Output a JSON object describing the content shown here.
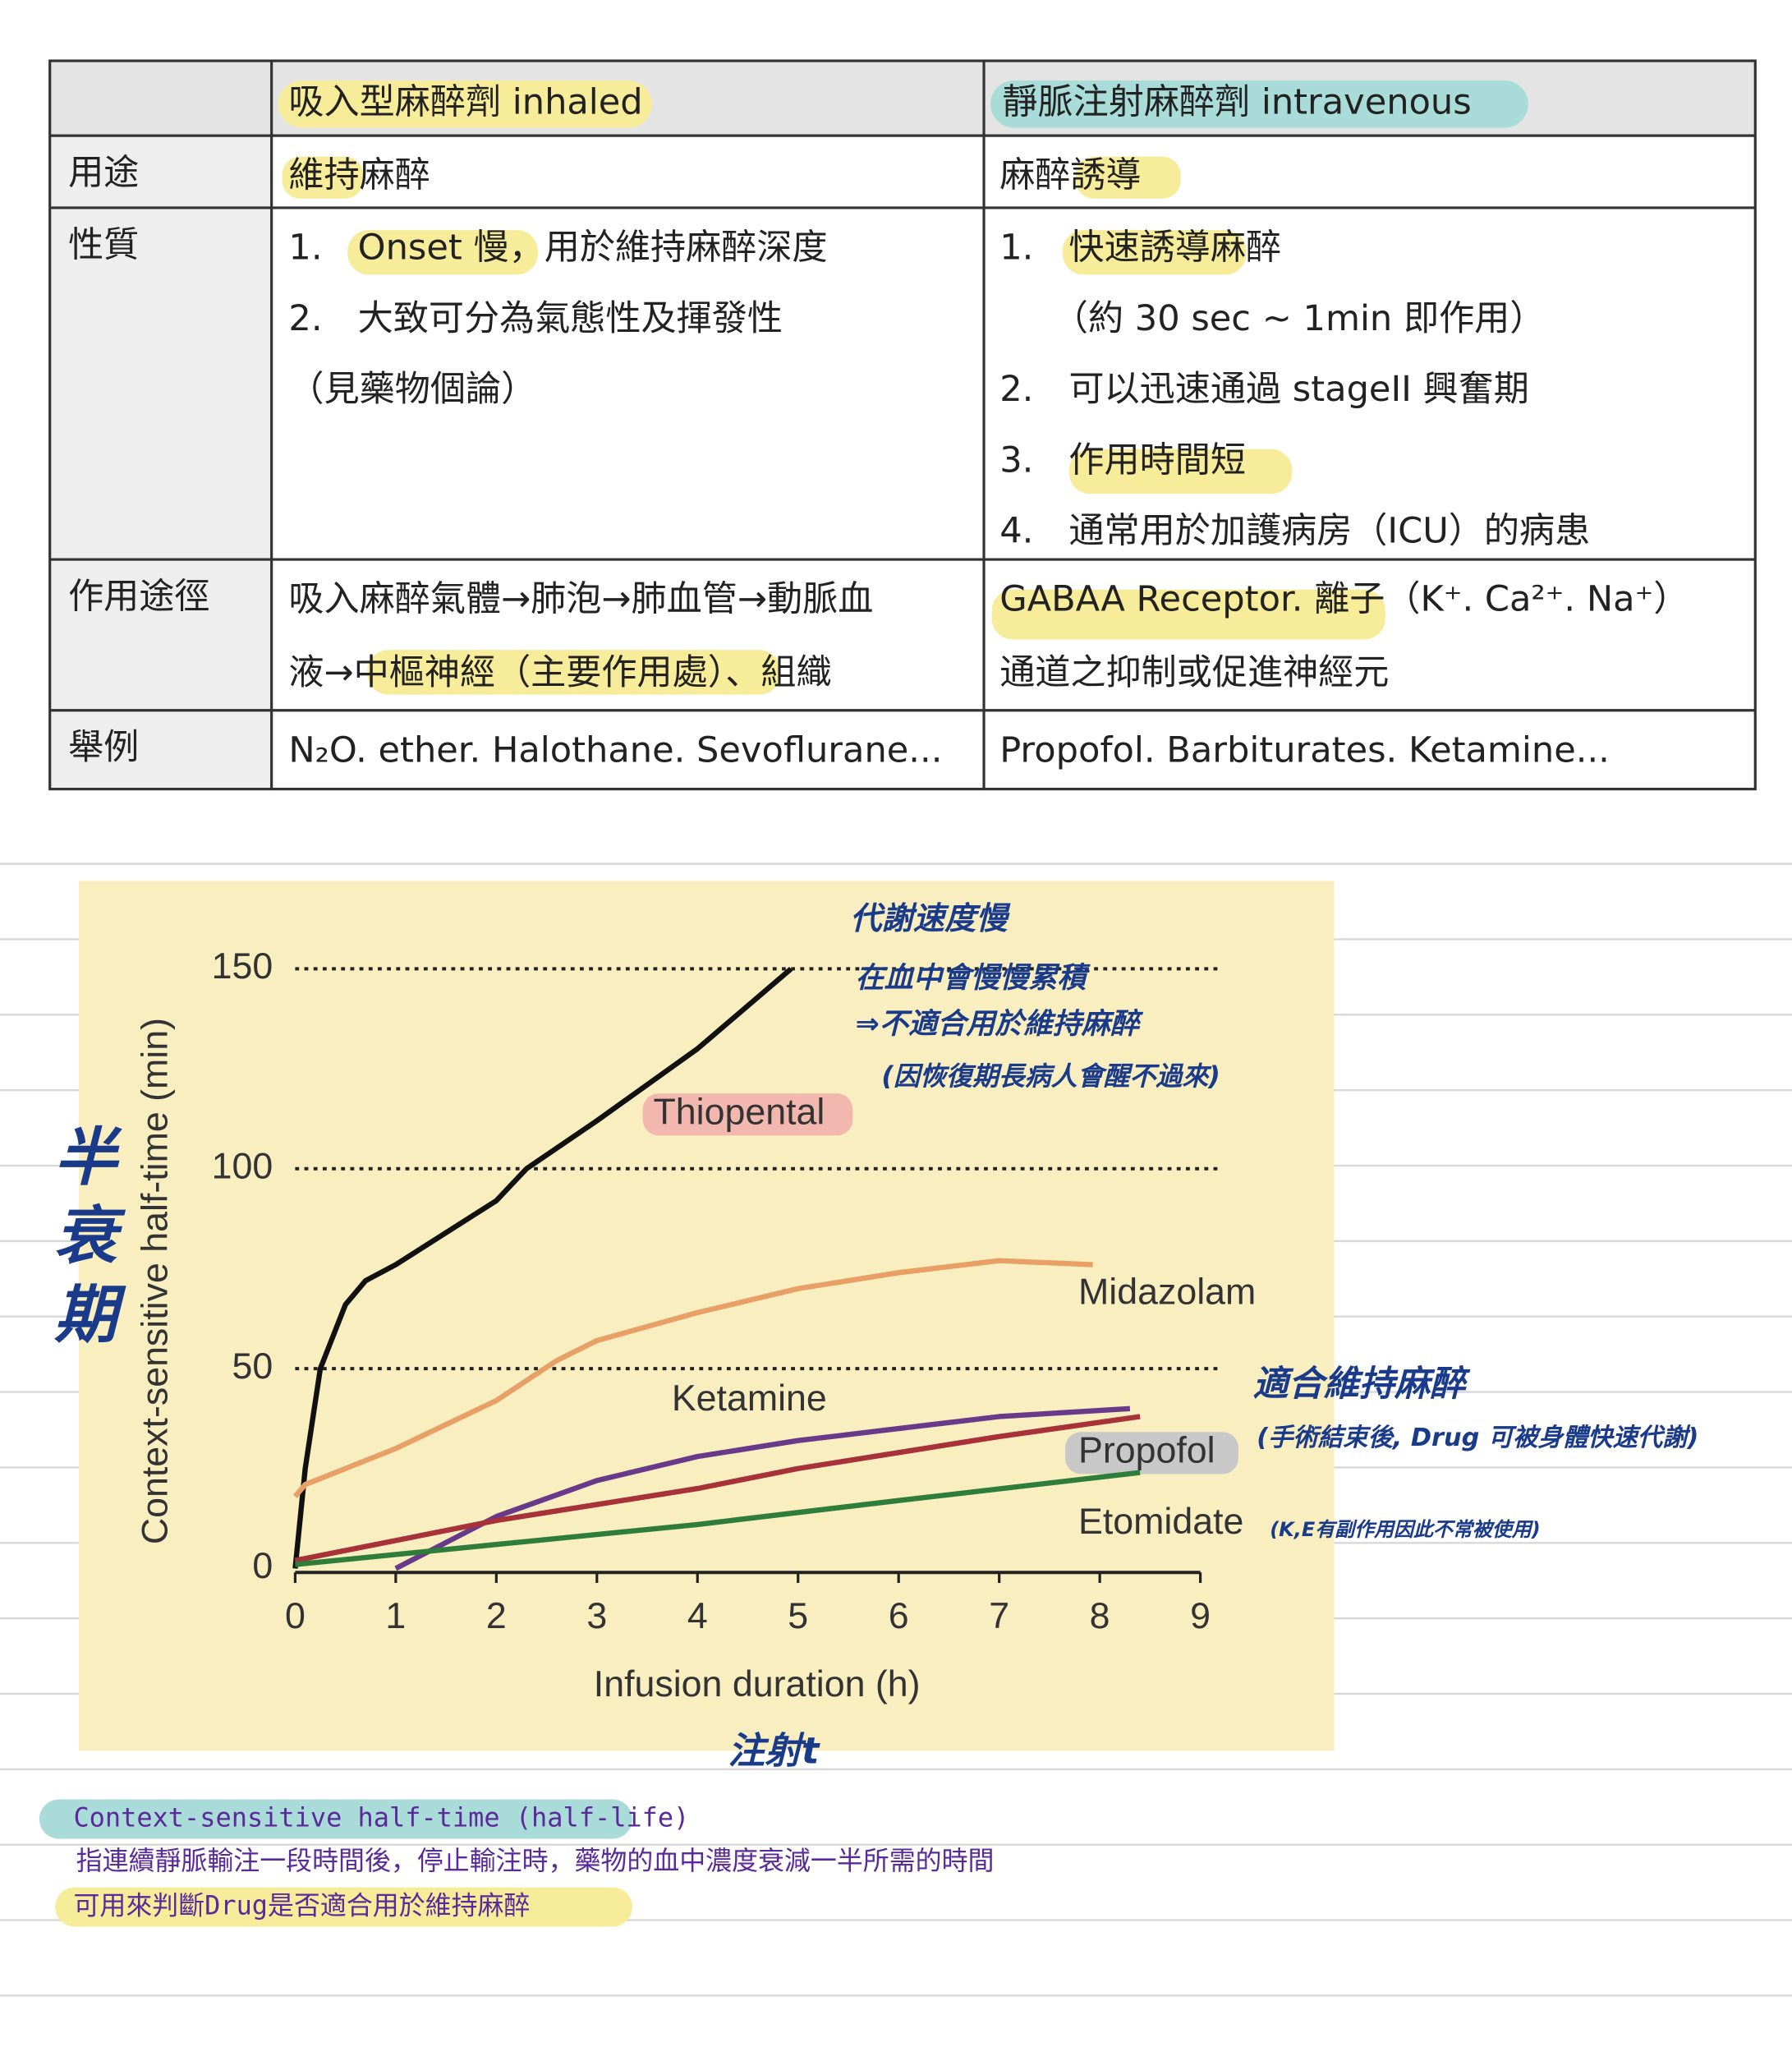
{
  "table": {
    "header": [
      "吸入型麻醉劑 inhaled",
      "靜脈注射麻醉劑 intravenous"
    ],
    "rows": [
      [
        "用途",
        [
          "維持麻醉"
        ],
        [
          "麻醉誘導"
        ]
      ],
      [
        "性質",
        [
          "1.　Onset 慢，用於維持麻醉深度",
          "2.　大致可分為氣態性及揮發性",
          "（見藥物個論）"
        ],
        [
          "1.　快速誘導麻醉",
          "　　（約 30 sec ~ 1min 即作用）",
          "2.　可以迅速通過 stageII 興奮期",
          "3.　作用時間短",
          "4.　通常用於加護病房（ICU）的病患"
        ]
      ],
      [
        "作用途徑",
        [
          "吸入麻醉氣體→肺泡→肺血管→動脈血",
          "液→中樞神經（主要作用處）、組織"
        ],
        [
          "GABAA Receptor. 離子（K⁺. Ca²⁺. Na⁺）",
          "通道之抑制或促進神經元"
        ]
      ],
      [
        "舉例",
        [
          "N₂O. ether. Halothane. Sevoflurane..."
        ],
        [
          "Propofol. Barbiturates. Ketamine..."
        ]
      ]
    ]
  },
  "chart_data": {
    "type": "line",
    "x_label": "Infusion duration (h)",
    "y_label": "Context-sensitive half-time (min)",
    "xlim": [
      0,
      9
    ],
    "ylim": [
      0,
      150
    ],
    "xticks": [
      0,
      1,
      2,
      3,
      4,
      5,
      6,
      7,
      8,
      9
    ],
    "yticks": [
      0,
      50,
      100,
      150
    ],
    "grid": true,
    "series": [
      {
        "name": "Thiopental",
        "color": "#111111",
        "x": [
          0,
          0.1,
          0.25,
          0.5,
          0.7,
          1,
          2,
          2.3,
          3,
          4,
          4.93
        ],
        "values": [
          0,
          25,
          50,
          66,
          72,
          76,
          92,
          100,
          112,
          130,
          150
        ]
      },
      {
        "name": "Midazolam",
        "color": "#e8a066",
        "x": [
          0,
          0.1,
          1,
          2,
          2.6,
          3,
          4,
          5,
          6,
          7,
          7.93
        ],
        "values": [
          18,
          21,
          30,
          42,
          52,
          57,
          64,
          70,
          74,
          77,
          76
        ]
      },
      {
        "name": "Ketamine",
        "color": "#6a3a8a",
        "x": [
          1,
          2,
          3,
          4,
          5,
          6,
          7,
          8.3
        ],
        "values": [
          0,
          13,
          22,
          28,
          32,
          35,
          38,
          40
        ]
      },
      {
        "name": "Propofol",
        "color": "#a8323a",
        "x": [
          0,
          1,
          2,
          3,
          4,
          5,
          6,
          7,
          8.4
        ],
        "values": [
          2,
          7,
          12,
          16,
          20,
          25,
          29,
          33,
          38
        ]
      },
      {
        "name": "Etomidate",
        "color": "#2e7d3a",
        "x": [
          0,
          2,
          4,
          6,
          8.4
        ],
        "values": [
          1,
          6,
          11,
          17,
          24
        ]
      }
    ],
    "annotations": [
      "代謝速度慢",
      "在血中會慢慢累積",
      "⇒不適合用於維持麻醉",
      "(因恢復期長病人會醒不過來)",
      "半衰期",
      "適合維持麻醉",
      "(手術結束後, Drug 可被身體快速代謝)",
      "(K,E有副作用因此不常被使用)",
      "注射t"
    ]
  },
  "notes": [
    "Context-sensitive half-time (half-life)",
    "指連續靜脈輸注一段時間後，停止輸注時，藥物的血中濃度衰減一半所需的時間",
    "可用來判斷Drug是否適合用於維持麻醉"
  ]
}
